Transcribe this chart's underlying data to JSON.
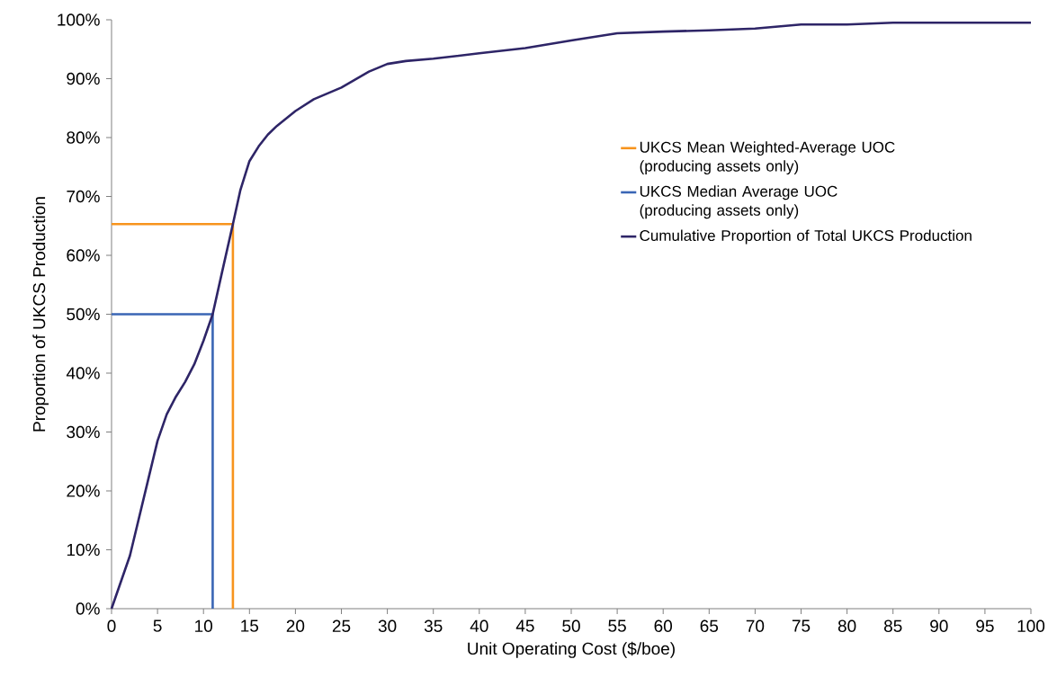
{
  "chart_data": {
    "type": "line",
    "xlabel": "Unit Operating Cost ($/boe)",
    "ylabel": "Proportion of UKCS Production",
    "xlim": [
      0,
      100
    ],
    "xticks": [
      0,
      5,
      10,
      15,
      20,
      25,
      30,
      35,
      40,
      45,
      50,
      55,
      60,
      65,
      70,
      75,
      80,
      85,
      90,
      95,
      100
    ],
    "ylim": [
      0,
      100
    ],
    "yticks": [
      {
        "value": 0,
        "label": "0%"
      },
      {
        "value": 10,
        "label": "10%"
      },
      {
        "value": 20,
        "label": "20%"
      },
      {
        "value": 30,
        "label": "30%"
      },
      {
        "value": 40,
        "label": "40%"
      },
      {
        "value": 50,
        "label": "50%"
      },
      {
        "value": 60,
        "label": "60%"
      },
      {
        "value": 70,
        "label": "70%"
      },
      {
        "value": 80,
        "label": "80%"
      },
      {
        "value": 90,
        "label": "90%"
      },
      {
        "value": 100,
        "label": "100%"
      }
    ],
    "grid": false,
    "legend": "right",
    "marker": "none",
    "line_style": "solid",
    "series": [
      {
        "name": "UKCS Mean Weighted-Average UOC (producing assets only)",
        "color": "#f7941d",
        "x": [
          0,
          13.2,
          13.2
        ],
        "values": [
          65.3,
          65.3,
          0
        ]
      },
      {
        "name": "UKCS Median Average UOC (producing assets only)",
        "color": "#3a66b5",
        "x": [
          0,
          11,
          11
        ],
        "values": [
          50,
          50,
          0
        ]
      },
      {
        "name": "Cumulative Proportion of Total UKCS Production",
        "color": "#2e2567",
        "x": [
          0,
          2,
          4,
          5,
          6,
          7,
          8,
          9,
          10,
          11,
          12,
          13.2,
          14,
          15,
          16,
          17,
          18,
          20,
          22,
          25,
          28,
          30,
          32,
          35,
          40,
          45,
          50,
          55,
          60,
          65,
          70,
          75,
          80,
          85,
          90,
          95,
          100
        ],
        "values": [
          0,
          9,
          22,
          28.5,
          33,
          36,
          38.5,
          41.5,
          45.5,
          50,
          57,
          65.3,
          71,
          76,
          78.5,
          80.5,
          82,
          84.5,
          86.5,
          88.5,
          91.2,
          92.5,
          93,
          93.4,
          94.3,
          95.2,
          96.5,
          97.7,
          98,
          98.2,
          98.5,
          99.2,
          99.2,
          99.5,
          99.5,
          99.5,
          99.5
        ]
      }
    ]
  }
}
